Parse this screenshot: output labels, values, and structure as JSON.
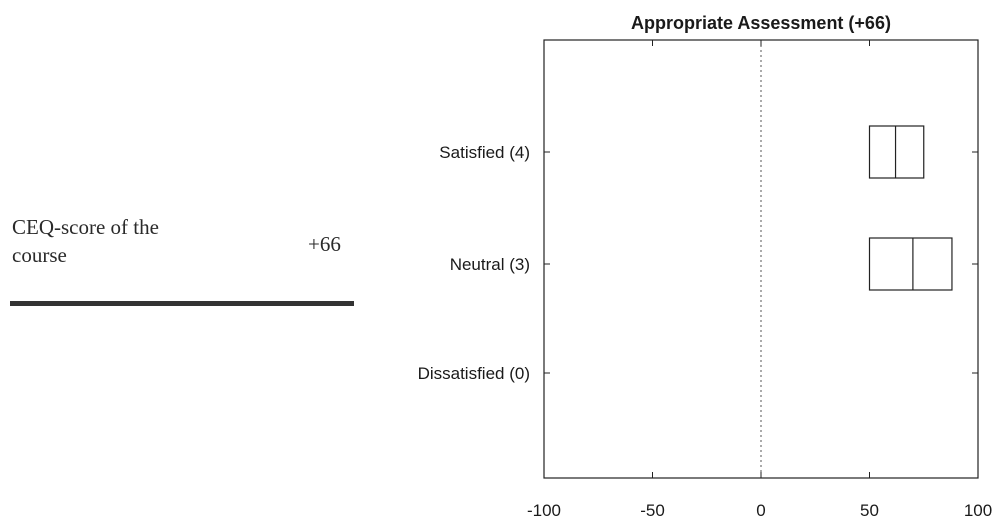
{
  "summary": {
    "label": "CEQ-score of the course",
    "value": "+66"
  },
  "chart_data": {
    "type": "box",
    "title": "Appropriate Assessment (+66)",
    "xlim": [
      -100,
      100
    ],
    "xticks": [
      -100,
      -50,
      0,
      50,
      100
    ],
    "xtick_labels": [
      "-100",
      "-50",
      "0",
      "50",
      "100"
    ],
    "reference_line_x": 0,
    "categories": [
      "Satisfied (4)",
      "Neutral (3)",
      "Dissatisfied (0)"
    ],
    "boxes": [
      {
        "category": "Satisfied (4)",
        "q1": 50,
        "median": 62,
        "q3": 75
      },
      {
        "category": "Neutral (3)",
        "q1": 50,
        "median": 70,
        "q3": 88
      },
      {
        "category": "Dissatisfied (0)",
        "q1": null,
        "median": null,
        "q3": null
      }
    ],
    "grid": false
  }
}
